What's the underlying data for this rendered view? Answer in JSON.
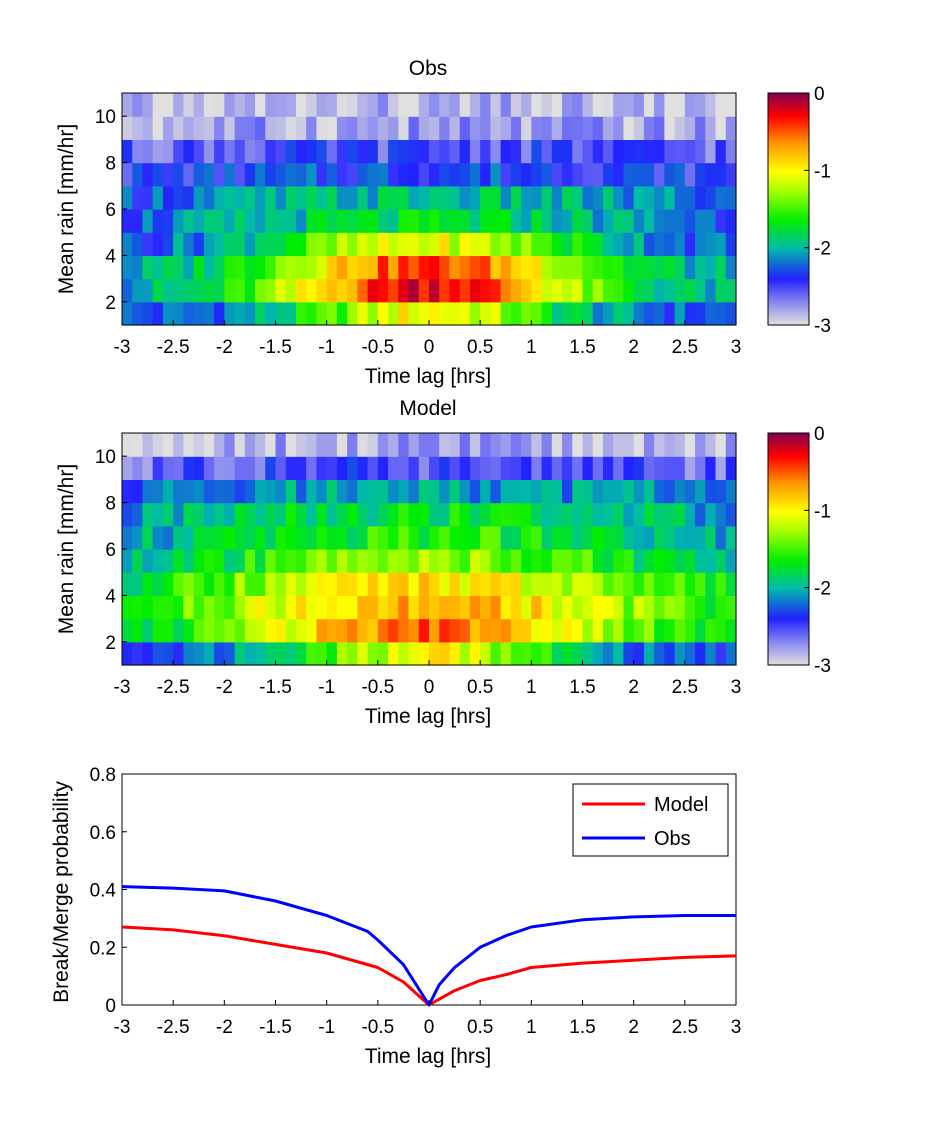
{
  "figure": {
    "panels": [
      {
        "title": "Obs",
        "xlabel": "Time lag [hrs]",
        "ylabel": "Mean rain [mm/hr]",
        "xticks": [
          "-3",
          "-2.5",
          "-2",
          "-1.5",
          "-1",
          "-0.5",
          "0",
          "0.5",
          "1",
          "1.5",
          "2",
          "2.5",
          "3"
        ],
        "yticks": [
          "2",
          "4",
          "6",
          "8",
          "10"
        ],
        "colorbar_ticks": [
          "0",
          "-1",
          "-2",
          "-3"
        ]
      },
      {
        "title": "Model",
        "xlabel": "Time lag [hrs]",
        "ylabel": "Mean rain [mm/hr]",
        "xticks": [
          "-3",
          "-2.5",
          "-2",
          "-1.5",
          "-1",
          "-0.5",
          "0",
          "0.5",
          "1",
          "1.5",
          "2",
          "2.5",
          "3"
        ],
        "yticks": [
          "2",
          "4",
          "6",
          "8",
          "10"
        ],
        "colorbar_ticks": [
          "0",
          "-1",
          "-2",
          "-3"
        ]
      },
      {
        "title": "",
        "xlabel": "Time lag [hrs]",
        "ylabel": "Break/Merge probability",
        "xticks": [
          "-3",
          "-2.5",
          "-2",
          "-1.5",
          "-1",
          "-0.5",
          "0",
          "0.5",
          "1",
          "1.5",
          "2",
          "2.5",
          "3"
        ],
        "yticks": [
          "0",
          "0.2",
          "0.4",
          "0.6",
          "0.8"
        ],
        "legend": [
          "Model",
          "Obs"
        ]
      }
    ]
  },
  "chart_data": [
    {
      "type": "heatmap",
      "title": "Obs",
      "xlabel": "Time lag [hrs]",
      "ylabel": "Mean rain [mm/hr]",
      "xlim": [
        -3,
        3
      ],
      "ylim": [
        1,
        11
      ],
      "color_scale": "log10 (colorbar -3 to 0)",
      "colorbar_range": [
        -3,
        0
      ],
      "x_bin_width": 0.1,
      "y_bins": [
        1,
        2,
        3,
        4,
        5,
        6,
        7,
        8,
        9,
        10
      ],
      "rows": [
        {
          "y": 1.5,
          "peak": -1.0,
          "width": 0.95,
          "floor": -2.3
        },
        {
          "y": 2.5,
          "peak": -0.2,
          "width": 1.1,
          "floor": -2.1
        },
        {
          "y": 3.5,
          "peak": -0.45,
          "width": 1.25,
          "floor": -2.2
        },
        {
          "y": 4.5,
          "peak": -1.1,
          "width": 1.3,
          "floor": -2.4
        },
        {
          "y": 5.5,
          "peak": -1.8,
          "width": 2.0,
          "floor": -2.5
        },
        {
          "y": 6.5,
          "peak": -1.95,
          "width": 2.2,
          "floor": -2.5
        },
        {
          "y": 7.5,
          "peak": -2.3,
          "width": 2.5,
          "floor": -2.6
        },
        {
          "y": 8.5,
          "peak": -2.5,
          "width": 3.0,
          "floor": -2.7
        },
        {
          "y": 9.5,
          "peak": -2.8,
          "width": 3.0,
          "floor": -2.9
        },
        {
          "y": 10.5,
          "peak": -2.9,
          "width": 3.0,
          "floor": -3.0
        }
      ]
    },
    {
      "type": "heatmap",
      "title": "Model",
      "xlabel": "Time lag [hrs]",
      "ylabel": "Mean rain [mm/hr]",
      "xlim": [
        -3,
        3
      ],
      "ylim": [
        1,
        11
      ],
      "color_scale": "log10 (colorbar -3 to 0)",
      "colorbar_range": [
        -3,
        0
      ],
      "x_bin_width": 0.1,
      "y_bins": [
        1,
        2,
        3,
        4,
        5,
        6,
        7,
        8,
        9,
        10
      ],
      "rows": [
        {
          "y": 1.5,
          "peak": -1.05,
          "width": 1.0,
          "floor": -2.3
        },
        {
          "y": 2.5,
          "peak": -0.55,
          "width": 1.5,
          "floor": -2.0
        },
        {
          "y": 3.5,
          "peak": -0.75,
          "width": 1.7,
          "floor": -1.9
        },
        {
          "y": 4.5,
          "peak": -0.95,
          "width": 1.8,
          "floor": -2.0
        },
        {
          "y": 5.5,
          "peak": -1.35,
          "width": 2.0,
          "floor": -2.3
        },
        {
          "y": 6.5,
          "peak": -1.6,
          "width": 2.2,
          "floor": -2.4
        },
        {
          "y": 7.5,
          "peak": -1.75,
          "width": 2.5,
          "floor": -2.4
        },
        {
          "y": 8.5,
          "peak": -2.05,
          "width": 3.0,
          "floor": -2.6
        },
        {
          "y": 9.5,
          "peak": -2.5,
          "width": 3.0,
          "floor": -2.8
        },
        {
          "y": 10.5,
          "peak": -2.85,
          "width": 3.0,
          "floor": -3.0
        }
      ]
    },
    {
      "type": "line",
      "title": "",
      "xlabel": "Time lag [hrs]",
      "ylabel": "Break/Merge probability",
      "xlim": [
        -3,
        3
      ],
      "ylim": [
        0,
        0.8
      ],
      "grid": false,
      "legend_position": "top-right",
      "series": [
        {
          "name": "Model",
          "color": "#ff0000",
          "x": [
            -3,
            -2.5,
            -2,
            -1.5,
            -1,
            -0.5,
            -0.25,
            0,
            0.1,
            0.25,
            0.5,
            0.75,
            1,
            1.5,
            2,
            2.5,
            3
          ],
          "y": [
            0.27,
            0.26,
            0.24,
            0.21,
            0.18,
            0.13,
            0.08,
            0.0,
            0.02,
            0.05,
            0.085,
            0.105,
            0.13,
            0.145,
            0.155,
            0.165,
            0.17
          ]
        },
        {
          "name": "Obs",
          "color": "#0000ff",
          "x": [
            -3,
            -2.5,
            -2,
            -1.5,
            -1,
            -0.6,
            -0.5,
            -0.25,
            0,
            0.1,
            0.25,
            0.5,
            0.75,
            1,
            1.5,
            2,
            2.5,
            3
          ],
          "y": [
            0.41,
            0.405,
            0.395,
            0.36,
            0.31,
            0.255,
            0.225,
            0.14,
            0.0,
            0.07,
            0.13,
            0.2,
            0.24,
            0.27,
            0.295,
            0.305,
            0.31,
            0.31
          ]
        }
      ]
    }
  ]
}
